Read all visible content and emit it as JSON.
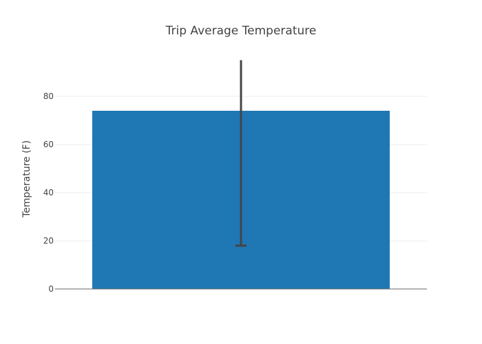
{
  "chart_data": {
    "type": "bar",
    "title": "Trip Average Temperature",
    "xlabel": "",
    "ylabel": "Temperature (F)",
    "categories": [
      ""
    ],
    "values": [
      74
    ],
    "error_bar": {
      "lower": 18,
      "upper": 95
    },
    "ylim": [
      0,
      100
    ],
    "yticks": [
      0,
      20,
      40,
      60,
      80
    ],
    "grid": true,
    "colors": {
      "bar": "#1f77b4",
      "error_bar": "#444444",
      "grid": "#eeeeee",
      "axis": "#666666",
      "text": "#444444"
    }
  }
}
